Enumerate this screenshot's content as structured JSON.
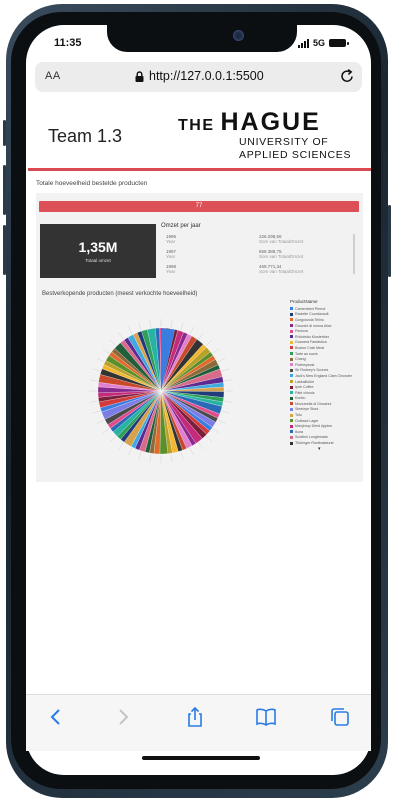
{
  "status": {
    "time": "11:35",
    "network": "5G"
  },
  "browser": {
    "text_size_button": "AA",
    "url": "http://127.0.0.1:5500",
    "lock_icon": "lock-icon",
    "reload_icon": "reload-icon",
    "toolbar_icons": [
      "back-chevron-icon",
      "forward-chevron-icon",
      "share-icon",
      "bookmarks-icon",
      "tabs-icon"
    ]
  },
  "header": {
    "team": "Team 1.3",
    "logo_the": "THE",
    "logo_hague": "HAGUE",
    "logo_line1": "UNIVERSITY OF",
    "logo_line2": "APPLIED SCIENCES",
    "accent_color": "#d94a52"
  },
  "dashboard": {
    "section_title": "Totale hoeveelheid bestelde producten",
    "redbar_value": "77",
    "kpi": {
      "value": "1,35M",
      "label": "Totaal omzet"
    },
    "omzet": {
      "title": "Omzet per jaar",
      "rows": [
        {
          "year": "1996",
          "sub": "Year",
          "amount": "226.298,56",
          "amount_sub": "Som van TotaalOmzet"
        },
        {
          "year": "1997",
          "sub": "Year",
          "amount": "658.388,75",
          "amount_sub": "Som van TotaalOmzet"
        },
        {
          "year": "1998",
          "sub": "Year",
          "amount": "469.771,34",
          "amount_sub": "Som van TotaalOmzet"
        }
      ]
    },
    "best_title": "Bestverkopende producten (meest verkochte hoeveelheid)",
    "legend": {
      "title": "ProductName",
      "items": [
        "Camembert Pierrot",
        "Raclette Courdavault",
        "Gorgonzola Telino",
        "Gnocchi di nonna Alice",
        "Pavlova",
        "Rhönbräu Klosterbier",
        "Guaraná Fantástica",
        "Boston Crab Meat",
        "Tarte au sucre",
        "Chang",
        "Flotemysost",
        "Sir Rodney's Scones",
        "Jack's New England Clam Chowder",
        "Lakkalikööri",
        "Ipoh Coffee",
        "Pâté chinois",
        "Konbu",
        "Mozzarella di Giovanni",
        "Steeleye Stout",
        "Tofu",
        "Outback Lager",
        "Manjimup Dried Apples",
        "Ikura",
        "Scottish Longbreads",
        "Thüringer Rostbratwurst"
      ],
      "colors": [
        "#3a7de0",
        "#1f3b7a",
        "#e06a2b",
        "#8a2a8f",
        "#e44b8d",
        "#5d2a8f",
        "#f2b630",
        "#d43a3a",
        "#2e9e59",
        "#8d6a3a",
        "#e27fd0",
        "#4b4b4b",
        "#3fa9e0",
        "#b7a128",
        "#7a1f3b",
        "#26b3a3",
        "#1f5f3a",
        "#c94a2a",
        "#7d7de8",
        "#d9a24a",
        "#5b8f2a",
        "#c62a7a",
        "#2a6ab7",
        "#d96b8a",
        "#333333"
      ]
    },
    "more_arrow": "▾"
  }
}
